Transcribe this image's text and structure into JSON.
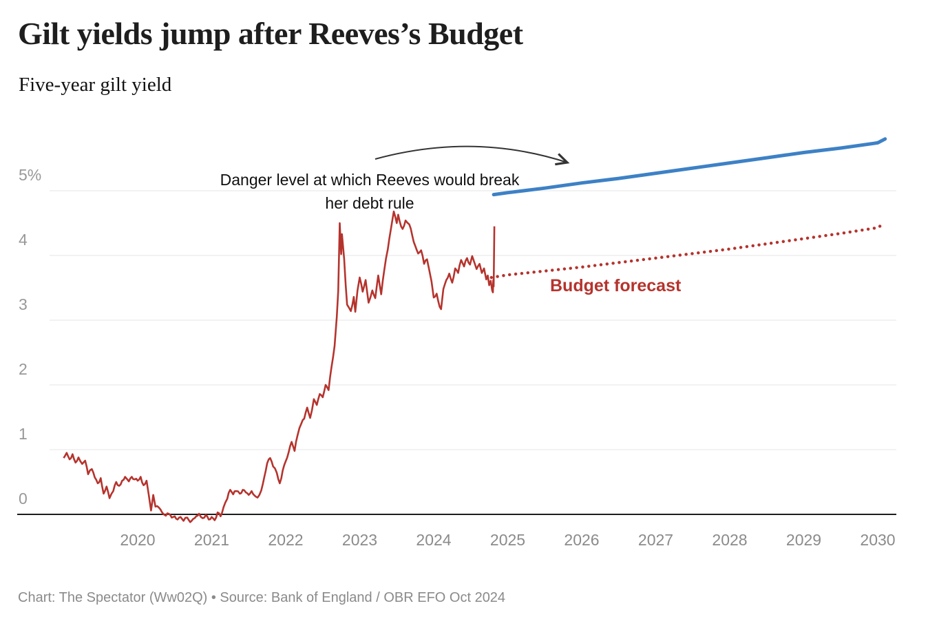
{
  "header": {
    "title": "Gilt yields jump after Reeves’s Budget",
    "subtitle": "Five-year gilt yield"
  },
  "annotations": {
    "danger_line1": "Danger level at which Reeves would break",
    "danger_line2": "her debt rule",
    "forecast_label": "Budget forecast"
  },
  "footer": {
    "credit": "Chart: The Spectator (Ww02Q) • Source: Bank of England / OBR EFO Oct 2024"
  },
  "colors": {
    "red": "#b5332d",
    "blue": "#3d81c6",
    "grid": "#e4e4e4",
    "zero_line": "#1d1d1d",
    "arrow": "#333333"
  },
  "chart_data": {
    "type": "line",
    "title": "Gilt yields jump after Reeves’s Budget",
    "subtitle": "Five-year gilt yield",
    "ylabel": "Five-year gilt yield (%)",
    "xlim": [
      2019.0,
      2030.3
    ],
    "ylim": [
      -0.35,
      6.0
    ],
    "grid": "horizontal",
    "y_ticks": [
      {
        "value": 0,
        "label": "0"
      },
      {
        "value": 1,
        "label": "1"
      },
      {
        "value": 2,
        "label": "2"
      },
      {
        "value": 3,
        "label": "3"
      },
      {
        "value": 4,
        "label": "4"
      },
      {
        "value": 5,
        "label": "5%"
      }
    ],
    "x_ticks": [
      {
        "value": 2020,
        "label": "2020"
      },
      {
        "value": 2021,
        "label": "2021"
      },
      {
        "value": 2022,
        "label": "2022"
      },
      {
        "value": 2023,
        "label": "2023"
      },
      {
        "value": 2024,
        "label": "2024"
      },
      {
        "value": 2025,
        "label": "2025"
      },
      {
        "value": 2026,
        "label": "2026"
      },
      {
        "value": 2027,
        "label": "2027"
      },
      {
        "value": 2028,
        "label": "2028"
      },
      {
        "value": 2029,
        "label": "2029"
      },
      {
        "value": 2030,
        "label": "2030"
      }
    ],
    "series": [
      {
        "name": "Five-year gilt yield (historical)",
        "style": "solid",
        "color_key": "red",
        "points": [
          [
            2019.0,
            0.87
          ],
          [
            2019.04,
            0.95
          ],
          [
            2019.08,
            0.85
          ],
          [
            2019.12,
            0.93
          ],
          [
            2019.16,
            0.8
          ],
          [
            2019.2,
            0.88
          ],
          [
            2019.25,
            0.78
          ],
          [
            2019.29,
            0.83
          ],
          [
            2019.33,
            0.62
          ],
          [
            2019.38,
            0.7
          ],
          [
            2019.42,
            0.57
          ],
          [
            2019.46,
            0.48
          ],
          [
            2019.5,
            0.56
          ],
          [
            2019.54,
            0.32
          ],
          [
            2019.58,
            0.43
          ],
          [
            2019.62,
            0.25
          ],
          [
            2019.67,
            0.36
          ],
          [
            2019.71,
            0.5
          ],
          [
            2019.75,
            0.44
          ],
          [
            2019.79,
            0.52
          ],
          [
            2019.83,
            0.58
          ],
          [
            2019.88,
            0.51
          ],
          [
            2019.92,
            0.58
          ],
          [
            2019.96,
            0.54
          ],
          [
            2020.0,
            0.52
          ],
          [
            2020.04,
            0.58
          ],
          [
            2020.08,
            0.45
          ],
          [
            2020.12,
            0.52
          ],
          [
            2020.15,
            0.3
          ],
          [
            2020.18,
            0.06
          ],
          [
            2020.21,
            0.3
          ],
          [
            2020.24,
            0.12
          ],
          [
            2020.29,
            0.1
          ],
          [
            2020.33,
            0.03
          ],
          [
            2020.38,
            -0.02
          ],
          [
            2020.42,
            0.01
          ],
          [
            2020.46,
            -0.05
          ],
          [
            2020.5,
            -0.03
          ],
          [
            2020.54,
            -0.08
          ],
          [
            2020.58,
            -0.04
          ],
          [
            2020.62,
            -0.1
          ],
          [
            2020.67,
            -0.05
          ],
          [
            2020.71,
            -0.12
          ],
          [
            2020.75,
            -0.07
          ],
          [
            2020.79,
            -0.03
          ],
          [
            2020.83,
            0.01
          ],
          [
            2020.88,
            -0.06
          ],
          [
            2020.92,
            -0.01
          ],
          [
            2020.96,
            -0.08
          ],
          [
            2021.0,
            -0.04
          ],
          [
            2021.04,
            -0.09
          ],
          [
            2021.08,
            0.03
          ],
          [
            2021.12,
            -0.03
          ],
          [
            2021.16,
            0.11
          ],
          [
            2021.21,
            0.24
          ],
          [
            2021.25,
            0.38
          ],
          [
            2021.29,
            0.31
          ],
          [
            2021.33,
            0.36
          ],
          [
            2021.38,
            0.32
          ],
          [
            2021.42,
            0.38
          ],
          [
            2021.46,
            0.34
          ],
          [
            2021.5,
            0.3
          ],
          [
            2021.54,
            0.36
          ],
          [
            2021.58,
            0.29
          ],
          [
            2021.62,
            0.26
          ],
          [
            2021.67,
            0.37
          ],
          [
            2021.71,
            0.57
          ],
          [
            2021.75,
            0.79
          ],
          [
            2021.79,
            0.87
          ],
          [
            2021.83,
            0.74
          ],
          [
            2021.88,
            0.64
          ],
          [
            2021.92,
            0.48
          ],
          [
            2021.96,
            0.68
          ],
          [
            2022.0,
            0.82
          ],
          [
            2022.04,
            0.96
          ],
          [
            2022.08,
            1.12
          ],
          [
            2022.12,
            0.98
          ],
          [
            2022.16,
            1.22
          ],
          [
            2022.21,
            1.4
          ],
          [
            2022.25,
            1.48
          ],
          [
            2022.29,
            1.65
          ],
          [
            2022.33,
            1.49
          ],
          [
            2022.38,
            1.78
          ],
          [
            2022.42,
            1.69
          ],
          [
            2022.46,
            1.86
          ],
          [
            2022.5,
            1.81
          ],
          [
            2022.54,
            2.0
          ],
          [
            2022.58,
            1.92
          ],
          [
            2022.62,
            2.28
          ],
          [
            2022.66,
            2.6
          ],
          [
            2022.69,
            3.05
          ],
          [
            2022.71,
            3.45
          ],
          [
            2022.73,
            4.5
          ],
          [
            2022.75,
            4.02
          ],
          [
            2022.76,
            4.33
          ],
          [
            2022.79,
            3.95
          ],
          [
            2022.81,
            3.55
          ],
          [
            2022.83,
            3.24
          ],
          [
            2022.88,
            3.14
          ],
          [
            2022.92,
            3.36
          ],
          [
            2022.94,
            3.13
          ],
          [
            2022.97,
            3.46
          ],
          [
            2023.0,
            3.66
          ],
          [
            2023.04,
            3.44
          ],
          [
            2023.08,
            3.62
          ],
          [
            2023.12,
            3.27
          ],
          [
            2023.17,
            3.46
          ],
          [
            2023.21,
            3.34
          ],
          [
            2023.25,
            3.69
          ],
          [
            2023.29,
            3.4
          ],
          [
            2023.33,
            3.76
          ],
          [
            2023.38,
            4.1
          ],
          [
            2023.42,
            4.4
          ],
          [
            2023.46,
            4.68
          ],
          [
            2023.5,
            4.5
          ],
          [
            2023.52,
            4.63
          ],
          [
            2023.54,
            4.53
          ],
          [
            2023.58,
            4.41
          ],
          [
            2023.62,
            4.54
          ],
          [
            2023.67,
            4.48
          ],
          [
            2023.71,
            4.31
          ],
          [
            2023.75,
            4.15
          ],
          [
            2023.79,
            4.03
          ],
          [
            2023.83,
            4.08
          ],
          [
            2023.87,
            3.87
          ],
          [
            2023.91,
            3.94
          ],
          [
            2023.94,
            3.77
          ],
          [
            2023.97,
            3.6
          ],
          [
            2024.0,
            3.35
          ],
          [
            2024.04,
            3.41
          ],
          [
            2024.08,
            3.21
          ],
          [
            2024.1,
            3.17
          ],
          [
            2024.13,
            3.48
          ],
          [
            2024.17,
            3.62
          ],
          [
            2024.21,
            3.72
          ],
          [
            2024.25,
            3.58
          ],
          [
            2024.29,
            3.8
          ],
          [
            2024.33,
            3.73
          ],
          [
            2024.37,
            3.93
          ],
          [
            2024.41,
            3.83
          ],
          [
            2024.45,
            3.96
          ],
          [
            2024.49,
            3.86
          ],
          [
            2024.52,
            3.99
          ],
          [
            2024.55,
            3.89
          ],
          [
            2024.58,
            3.79
          ],
          [
            2024.62,
            3.87
          ],
          [
            2024.65,
            3.73
          ],
          [
            2024.68,
            3.8
          ],
          [
            2024.71,
            3.63
          ],
          [
            2024.73,
            3.69
          ],
          [
            2024.75,
            3.54
          ],
          [
            2024.77,
            3.61
          ],
          [
            2024.79,
            3.46
          ],
          [
            2024.8,
            3.43
          ],
          [
            2024.805,
            3.62
          ],
          [
            2024.81,
            3.52
          ],
          [
            2024.82,
            4.45
          ]
        ]
      },
      {
        "name": "Budget forecast",
        "style": "dotted",
        "color_key": "red",
        "points": [
          [
            2024.78,
            3.66
          ],
          [
            2025.0,
            3.7
          ],
          [
            2025.5,
            3.76
          ],
          [
            2026.0,
            3.82
          ],
          [
            2026.5,
            3.89
          ],
          [
            2027.0,
            3.96
          ],
          [
            2027.5,
            4.03
          ],
          [
            2028.0,
            4.1
          ],
          [
            2028.5,
            4.18
          ],
          [
            2029.0,
            4.26
          ],
          [
            2029.5,
            4.34
          ],
          [
            2030.0,
            4.43
          ],
          [
            2030.08,
            4.49
          ]
        ]
      },
      {
        "name": "Danger level at which Reeves would break her debt rule",
        "style": "solid-thick",
        "color_key": "blue",
        "points": [
          [
            2024.81,
            4.94
          ],
          [
            2025.0,
            4.97
          ],
          [
            2025.5,
            5.04
          ],
          [
            2026.0,
            5.12
          ],
          [
            2026.5,
            5.19
          ],
          [
            2027.0,
            5.27
          ],
          [
            2027.5,
            5.35
          ],
          [
            2028.0,
            5.43
          ],
          [
            2028.5,
            5.51
          ],
          [
            2029.0,
            5.59
          ],
          [
            2029.5,
            5.66
          ],
          [
            2030.0,
            5.74
          ],
          [
            2030.1,
            5.8
          ]
        ]
      }
    ]
  }
}
